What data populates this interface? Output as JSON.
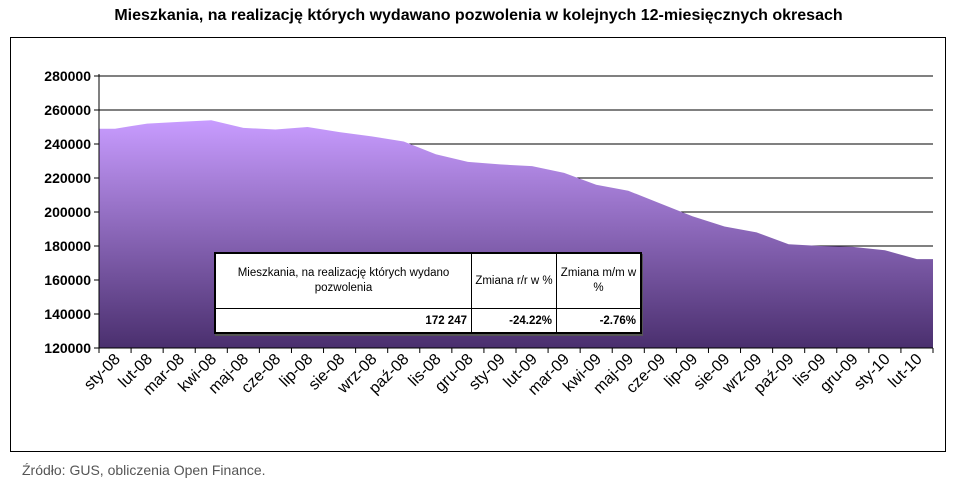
{
  "title": "Mieszkania, na realizację których wydawano pozwolenia w kolejnych 12-miesięcznych okresach",
  "source": "Źródło: GUS, obliczenia Open Finance.",
  "colors": {
    "area_top": "#c89cff",
    "area_bottom": "#4a2f6e",
    "grid": "#000000"
  },
  "table": {
    "header_1": "Mieszkania, na realizację których wydano pozwolenia",
    "header_2": "Zmiana r/r w %",
    "header_3": "Zmiana m/m w %",
    "value_1": "172 247",
    "value_2": "-24.22%",
    "value_3": "-2.76%"
  },
  "chart_data": {
    "type": "area",
    "title": "Mieszkania, na realizację których wydawano pozwolenia w kolejnych 12-miesięcznych okresach",
    "ylim": [
      120000,
      280000
    ],
    "yticks": [
      120000,
      140000,
      160000,
      180000,
      200000,
      220000,
      240000,
      260000,
      280000
    ],
    "ytick_labels": [
      "120000",
      "140000",
      "160000",
      "180000",
      "200000",
      "220000",
      "240000",
      "260000",
      "280000"
    ],
    "grid": true,
    "categories": [
      "sty-08",
      "lut-08",
      "mar-08",
      "kwi-08",
      "maj-08",
      "cze-08",
      "lip-08",
      "sie-08",
      "wrz-08",
      "paź-08",
      "lis-08",
      "gru-08",
      "sty-09",
      "lut-09",
      "mar-09",
      "kwi-09",
      "maj-09",
      "cze-09",
      "lip-09",
      "sie-09",
      "wrz-09",
      "paź-09",
      "lis-09",
      "gru-09",
      "sty-10",
      "lut-10"
    ],
    "values": [
      249000,
      252000,
      253000,
      254000,
      249500,
      248500,
      250000,
      247000,
      244500,
      241500,
      234000,
      229500,
      228000,
      227000,
      223000,
      216000,
      212500,
      205000,
      197500,
      191500,
      188000,
      181000,
      180000,
      179500,
      177500,
      172247
    ]
  }
}
